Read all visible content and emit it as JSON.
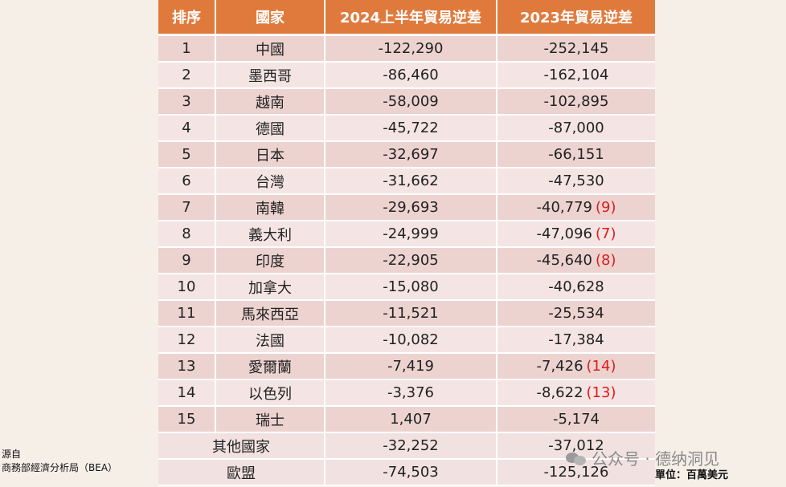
{
  "headers": [
    "排序",
    "國家",
    "2024上半年貿易逆差",
    "2023年貿易逆差"
  ],
  "rows": [
    {
      "rank": "1",
      "country": "中國",
      "h1_2024": "-122,290",
      "y2023": "-252,145",
      "prev_rank": ""
    },
    {
      "rank": "2",
      "country": "墨西哥",
      "h1_2024": "-86,460",
      "y2023": "-162,104",
      "prev_rank": ""
    },
    {
      "rank": "3",
      "country": "越南",
      "h1_2024": "-58,009",
      "y2023": "-102,895",
      "prev_rank": ""
    },
    {
      "rank": "4",
      "country": "德國",
      "h1_2024": "-45,722",
      "y2023": "-87,000",
      "prev_rank": ""
    },
    {
      "rank": "5",
      "country": "日本",
      "h1_2024": "-32,697",
      "y2023": "-66,151",
      "prev_rank": ""
    },
    {
      "rank": "6",
      "country": "台灣",
      "h1_2024": "-31,662",
      "y2023": "-47,530",
      "prev_rank": ""
    },
    {
      "rank": "7",
      "country": "南韓",
      "h1_2024": "-29,693",
      "y2023": "-40,779",
      "prev_rank": "(9)"
    },
    {
      "rank": "8",
      "country": "義大利",
      "h1_2024": "-24,999",
      "y2023": "-47,096",
      "prev_rank": "(7)"
    },
    {
      "rank": "9",
      "country": "印度",
      "h1_2024": "-22,905",
      "y2023": "-45,640",
      "prev_rank": "(8)"
    },
    {
      "rank": "10",
      "country": "加拿大",
      "h1_2024": "-15,080",
      "y2023": "-40,628",
      "prev_rank": ""
    },
    {
      "rank": "11",
      "country": "馬來西亞",
      "h1_2024": "-11,521",
      "y2023": "-25,534",
      "prev_rank": ""
    },
    {
      "rank": "12",
      "country": "法國",
      "h1_2024": "-10,082",
      "y2023": "-17,384",
      "prev_rank": ""
    },
    {
      "rank": "13",
      "country": "愛爾蘭",
      "h1_2024": "-7,419",
      "y2023": "-7,426",
      "prev_rank": "(14)"
    },
    {
      "rank": "14",
      "country": "以色列",
      "h1_2024": "-3,376",
      "y2023": "-8,622",
      "prev_rank": "(13)"
    },
    {
      "rank": "15",
      "country": "瑞士",
      "h1_2024": "1,407",
      "y2023": "-5,174",
      "prev_rank": ""
    }
  ],
  "summary": [
    {
      "label": "其他國家",
      "h1_2024": "-32,252",
      "y2023": "-37,012"
    },
    {
      "label": "歐盟",
      "h1_2024": "-74,503",
      "y2023": "-125,126"
    }
  ],
  "source": {
    "line1": "源自",
    "line2": "商務部經濟分析局（BEA）"
  },
  "unit": "單位：百萬美元",
  "watermark": "公众号 · 德纳洞见",
  "colors": {
    "header_bg": "#e07a3c",
    "row_odd": "#ecd3d0",
    "row_even": "#f4e5e4",
    "rank_highlight": "#e01b1b"
  }
}
